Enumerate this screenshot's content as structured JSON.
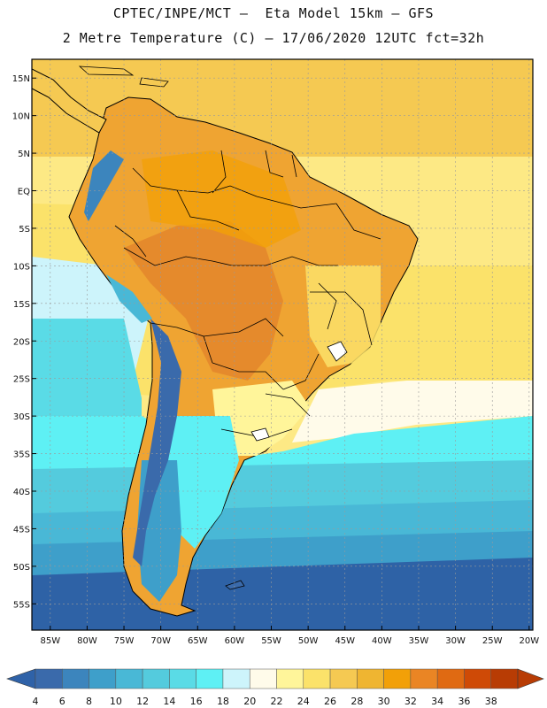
{
  "title_line1": "CPTEC/INPE/MCT –  Eta Model 15km – GFS",
  "title_line2": "2 Metre Temperature (C) – 17/06/2020 12UTC fct=32h",
  "lat_labels": [
    "15N",
    "10N",
    "5N",
    "EQ",
    "5S",
    "10S",
    "15S",
    "20S",
    "25S",
    "30S",
    "35S",
    "40S",
    "45S",
    "50S",
    "55S"
  ],
  "lon_labels": [
    "85W",
    "80W",
    "75W",
    "70W",
    "65W",
    "60W",
    "55W",
    "50W",
    "45W",
    "40W",
    "35W",
    "30W",
    "25W",
    "20W"
  ],
  "colorbar": {
    "labels": [
      "4",
      "6",
      "8",
      "10",
      "12",
      "14",
      "16",
      "18",
      "20",
      "22",
      "24",
      "26",
      "28",
      "30",
      "32",
      "34",
      "36",
      "38"
    ],
    "colors": [
      "#3a6aab",
      "#3c85bd",
      "#3e9fca",
      "#49b8d6",
      "#54cbdd",
      "#5adbe6",
      "#5ef0f4",
      "#cdf4fb",
      "#fffbea",
      "#fff59a",
      "#fbe26a",
      "#f5c952",
      "#efb531",
      "#f2a008",
      "#ea8524",
      "#e06a12",
      "#cf4a06",
      "#b83c04"
    ],
    "low_arrow": "#2f62a8",
    "high_arrow": "#b83c04"
  },
  "map_colors": {
    "deep_ocean": "#2e62a6",
    "cold_ocean": "#3f8fc6",
    "cool_ocean": "#4ec6dc",
    "mid_ocean": "#5ef0f4",
    "warm_band": "#cdf4fb",
    "tropical_ocean": "#fde985",
    "tropics": "#f5c952",
    "land_hot": "#efa432",
    "land_very_hot": "#e58a2c",
    "andes_cold": "#3c78b8",
    "coast": "#000000",
    "grid": "#9a9a9a"
  }
}
